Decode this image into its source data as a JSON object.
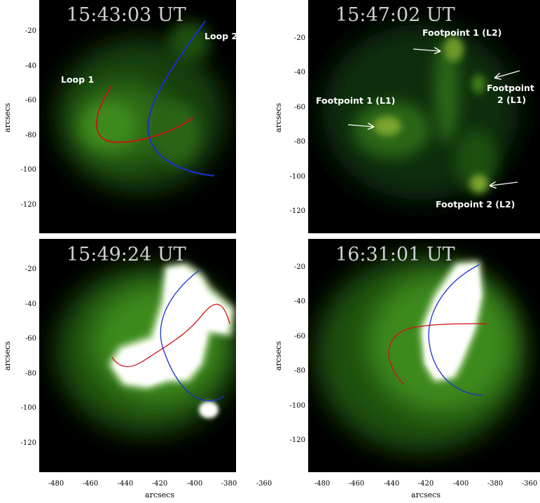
{
  "panels": [
    {
      "timestamp": "15:43:03 UT",
      "y_ticks": [
        "-20",
        "-40",
        "-60",
        "-80",
        "-100",
        "-120"
      ],
      "y_label": "arcsecs",
      "annotations": {
        "loop1": "Loop 1",
        "loop2": "Loop 2"
      }
    },
    {
      "timestamp": "15:47:02 UT",
      "y_ticks": [
        "-20",
        "-40",
        "-60",
        "-80",
        "-100",
        "-120"
      ],
      "y_label": "arcsecs",
      "annotations": {
        "fp1_l2": "Footpoint 1 (L2)",
        "fp2_l1_a": "Footpoint",
        "fp2_l1_b": "2 (L1)",
        "fp1_l1": "Footpoint 1 (L1)",
        "fp2_l2": "Footpoint 2 (L2)"
      }
    },
    {
      "timestamp": "15:49:24 UT",
      "y_ticks": [
        "-20",
        "-40",
        "-60",
        "-80",
        "-100",
        "-120"
      ],
      "y_label": "arcsecs"
    },
    {
      "timestamp": "16:31:01 UT",
      "y_ticks": [
        "-20",
        "-40",
        "-60",
        "-80",
        "-100",
        "-120"
      ],
      "y_label": "arcsecs"
    }
  ],
  "x_ticks": [
    "-480",
    "-460",
    "-440",
    "-420",
    "-400",
    "-380",
    "-360"
  ],
  "x_label": "arcsecs",
  "colors": {
    "background": "#000000",
    "glow": "#3c8a1e",
    "loop1": "#d01010",
    "loop2": "#1a2fd0",
    "timestamp": "#d0d0d0",
    "annotation": "#ffffff"
  }
}
